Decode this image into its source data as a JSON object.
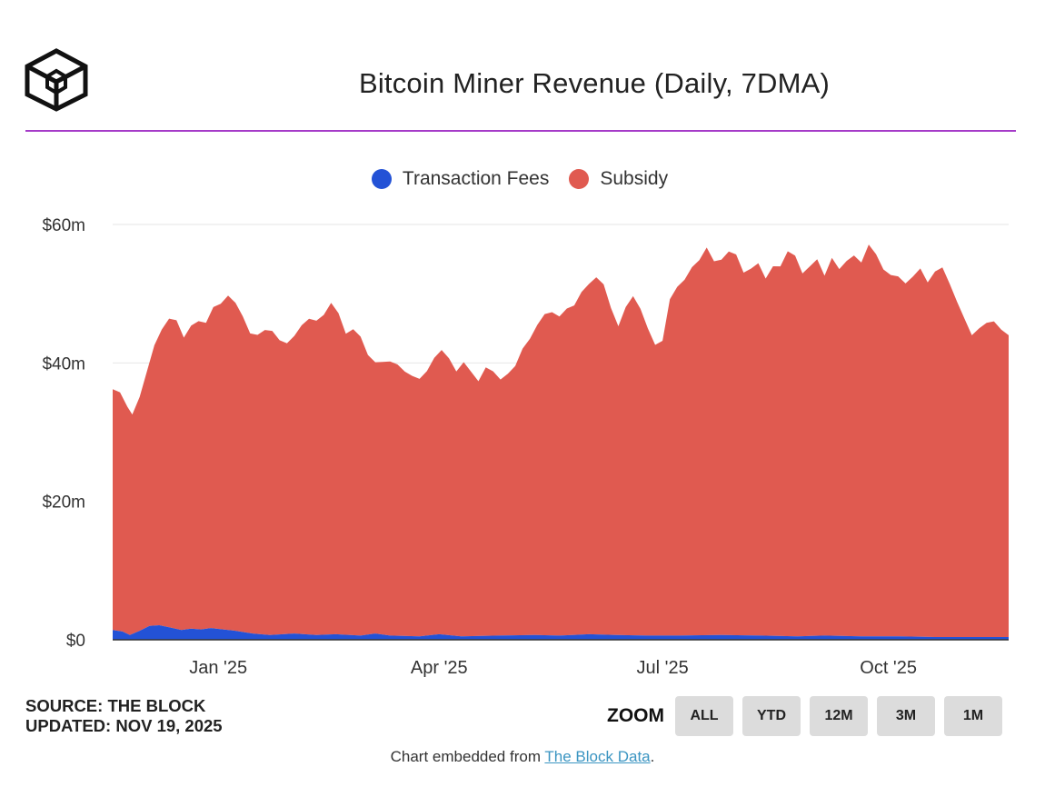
{
  "header": {
    "logo_icon": "the-block-cube-logo-icon",
    "title": "Bitcoin Miner Revenue (Daily, 7DMA)"
  },
  "legend": [
    {
      "name": "Transaction Fees",
      "color": "#2352d6"
    },
    {
      "name": "Subsidy",
      "color": "#e05a50"
    }
  ],
  "chart_data": {
    "type": "area",
    "stacked": true,
    "title": "Bitcoin Miner Revenue (Daily, 7DMA)",
    "xlabel": "",
    "ylabel": "",
    "x_range": [
      "2024-11-19",
      "2025-11-19"
    ],
    "ylim": [
      0,
      60
    ],
    "y_unit": "$m",
    "grid": true,
    "legend_position": "top-center",
    "x_ticks": [
      {
        "date": "2025-01-01",
        "label": "Jan '25"
      },
      {
        "date": "2025-04-01",
        "label": "Apr '25"
      },
      {
        "date": "2025-07-01",
        "label": "Jul '25"
      },
      {
        "date": "2025-10-01",
        "label": "Oct '25"
      }
    ],
    "y_ticks": [
      {
        "value": 0,
        "label": "$0"
      },
      {
        "value": 20,
        "label": "$20m"
      },
      {
        "value": 40,
        "label": "$40m"
      },
      {
        "value": 60,
        "label": "$60m"
      }
    ],
    "series": [
      {
        "name": "Transaction Fees",
        "color": "#2352d6",
        "points": [
          [
            "2024-11-19",
            1.4
          ],
          [
            "2024-11-23",
            1.2
          ],
          [
            "2024-11-26",
            0.7
          ],
          [
            "2024-11-30",
            1.3
          ],
          [
            "2024-12-04",
            2.0
          ],
          [
            "2024-12-08",
            2.1
          ],
          [
            "2024-12-12",
            1.8
          ],
          [
            "2024-12-17",
            1.4
          ],
          [
            "2024-12-21",
            1.6
          ],
          [
            "2024-12-25",
            1.5
          ],
          [
            "2024-12-29",
            1.7
          ],
          [
            "2025-01-03",
            1.5
          ],
          [
            "2025-01-08",
            1.3
          ],
          [
            "2025-01-15",
            0.9
          ],
          [
            "2025-01-22",
            0.7
          ],
          [
            "2025-02-01",
            0.9
          ],
          [
            "2025-02-10",
            0.7
          ],
          [
            "2025-02-18",
            0.8
          ],
          [
            "2025-02-28",
            0.6
          ],
          [
            "2025-03-06",
            0.9
          ],
          [
            "2025-03-12",
            0.6
          ],
          [
            "2025-03-24",
            0.5
          ],
          [
            "2025-04-01",
            0.8
          ],
          [
            "2025-04-10",
            0.5
          ],
          [
            "2025-04-25",
            0.6
          ],
          [
            "2025-05-10",
            0.7
          ],
          [
            "2025-05-20",
            0.6
          ],
          [
            "2025-06-01",
            0.8
          ],
          [
            "2025-06-12",
            0.7
          ],
          [
            "2025-06-25",
            0.6
          ],
          [
            "2025-07-08",
            0.6
          ],
          [
            "2025-07-25",
            0.7
          ],
          [
            "2025-08-10",
            0.6
          ],
          [
            "2025-08-25",
            0.5
          ],
          [
            "2025-09-05",
            0.6
          ],
          [
            "2025-09-20",
            0.5
          ],
          [
            "2025-10-05",
            0.5
          ],
          [
            "2025-10-20",
            0.4
          ],
          [
            "2025-11-05",
            0.4
          ],
          [
            "2025-11-19",
            0.4
          ]
        ]
      },
      {
        "name": "Subsidy",
        "color": "#e05a50",
        "points": [
          [
            "2024-11-19",
            34.8
          ],
          [
            "2024-11-22",
            34.5
          ],
          [
            "2024-11-25",
            32.8
          ],
          [
            "2024-11-27",
            31.7
          ],
          [
            "2024-11-30",
            33.8
          ],
          [
            "2024-12-03",
            37.0
          ],
          [
            "2024-12-06",
            40.5
          ],
          [
            "2024-12-09",
            42.8
          ],
          [
            "2024-12-12",
            44.6
          ],
          [
            "2024-12-15",
            44.6
          ],
          [
            "2024-12-18",
            42.2
          ],
          [
            "2024-12-21",
            43.8
          ],
          [
            "2024-12-24",
            44.5
          ],
          [
            "2024-12-27",
            44.2
          ],
          [
            "2024-12-30",
            46.4
          ],
          [
            "2025-01-02",
            47.0
          ],
          [
            "2025-01-05",
            48.3
          ],
          [
            "2025-01-08",
            47.4
          ],
          [
            "2025-01-11",
            45.6
          ],
          [
            "2025-01-14",
            43.3
          ],
          [
            "2025-01-17",
            43.2
          ],
          [
            "2025-01-20",
            44.0
          ],
          [
            "2025-01-23",
            43.9
          ],
          [
            "2025-01-26",
            42.5
          ],
          [
            "2025-01-29",
            42.0
          ],
          [
            "2025-02-01",
            43.0
          ],
          [
            "2025-02-04",
            44.6
          ],
          [
            "2025-02-07",
            45.6
          ],
          [
            "2025-02-10",
            45.4
          ],
          [
            "2025-02-13",
            46.2
          ],
          [
            "2025-02-16",
            47.9
          ],
          [
            "2025-02-19",
            46.4
          ],
          [
            "2025-02-22",
            43.5
          ],
          [
            "2025-02-25",
            44.2
          ],
          [
            "2025-02-28",
            43.2
          ],
          [
            "2025-03-03",
            40.4
          ],
          [
            "2025-03-06",
            39.2
          ],
          [
            "2025-03-09",
            39.4
          ],
          [
            "2025-03-12",
            39.6
          ],
          [
            "2025-03-15",
            39.2
          ],
          [
            "2025-03-18",
            38.2
          ],
          [
            "2025-03-21",
            37.6
          ],
          [
            "2025-03-24",
            37.2
          ],
          [
            "2025-03-27",
            38.2
          ],
          [
            "2025-03-30",
            40.0
          ],
          [
            "2025-04-02",
            41.1
          ],
          [
            "2025-04-05",
            40.0
          ],
          [
            "2025-04-08",
            38.2
          ],
          [
            "2025-04-11",
            39.6
          ],
          [
            "2025-04-14",
            38.2
          ],
          [
            "2025-04-17",
            36.8
          ],
          [
            "2025-04-20",
            38.8
          ],
          [
            "2025-04-23",
            38.2
          ],
          [
            "2025-04-26",
            37.0
          ],
          [
            "2025-04-29",
            37.8
          ],
          [
            "2025-05-02",
            38.9
          ],
          [
            "2025-05-05",
            41.4
          ],
          [
            "2025-05-08",
            42.8
          ],
          [
            "2025-05-11",
            44.8
          ],
          [
            "2025-05-14",
            46.4
          ],
          [
            "2025-05-17",
            46.7
          ],
          [
            "2025-05-20",
            46.1
          ],
          [
            "2025-05-23",
            47.2
          ],
          [
            "2025-05-26",
            47.6
          ],
          [
            "2025-05-29",
            49.5
          ],
          [
            "2025-06-01",
            50.6
          ],
          [
            "2025-06-04",
            51.6
          ],
          [
            "2025-06-07",
            50.6
          ],
          [
            "2025-06-10",
            47.2
          ],
          [
            "2025-06-13",
            44.6
          ],
          [
            "2025-06-16",
            47.4
          ],
          [
            "2025-06-19",
            49.0
          ],
          [
            "2025-06-22",
            47.2
          ],
          [
            "2025-06-25",
            44.4
          ],
          [
            "2025-06-28",
            42.0
          ],
          [
            "2025-07-01",
            42.6
          ],
          [
            "2025-07-04",
            48.6
          ],
          [
            "2025-07-07",
            50.4
          ],
          [
            "2025-07-10",
            51.4
          ],
          [
            "2025-07-13",
            53.2
          ],
          [
            "2025-07-16",
            54.2
          ],
          [
            "2025-07-19",
            56.0
          ],
          [
            "2025-07-22",
            54.0
          ],
          [
            "2025-07-25",
            54.2
          ],
          [
            "2025-07-28",
            55.4
          ],
          [
            "2025-07-31",
            55.0
          ],
          [
            "2025-08-03",
            52.4
          ],
          [
            "2025-08-06",
            53.0
          ],
          [
            "2025-08-09",
            53.8
          ],
          [
            "2025-08-12",
            51.6
          ],
          [
            "2025-08-15",
            53.4
          ],
          [
            "2025-08-18",
            53.4
          ],
          [
            "2025-08-21",
            55.6
          ],
          [
            "2025-08-24",
            55.0
          ],
          [
            "2025-08-27",
            52.4
          ],
          [
            "2025-08-30",
            53.4
          ],
          [
            "2025-09-02",
            54.4
          ],
          [
            "2025-09-05",
            52.0
          ],
          [
            "2025-09-08",
            54.6
          ],
          [
            "2025-09-11",
            53.0
          ],
          [
            "2025-09-14",
            54.2
          ],
          [
            "2025-09-17",
            55.0
          ],
          [
            "2025-09-20",
            54.0
          ],
          [
            "2025-09-23",
            56.6
          ],
          [
            "2025-09-26",
            55.2
          ],
          [
            "2025-09-29",
            53.0
          ],
          [
            "2025-10-02",
            52.2
          ],
          [
            "2025-10-05",
            52.0
          ],
          [
            "2025-10-08",
            51.0
          ],
          [
            "2025-10-11",
            52.0
          ],
          [
            "2025-10-14",
            53.2
          ],
          [
            "2025-10-17",
            51.2
          ],
          [
            "2025-10-20",
            52.8
          ],
          [
            "2025-10-23",
            53.4
          ],
          [
            "2025-10-26",
            51.0
          ],
          [
            "2025-10-29",
            48.4
          ],
          [
            "2025-11-01",
            46.0
          ],
          [
            "2025-11-04",
            43.6
          ],
          [
            "2025-11-07",
            44.6
          ],
          [
            "2025-11-10",
            45.4
          ],
          [
            "2025-11-13",
            45.6
          ],
          [
            "2025-11-16",
            44.4
          ],
          [
            "2025-11-19",
            43.6
          ]
        ]
      }
    ]
  },
  "footer": {
    "source_line": "SOURCE: THE BLOCK",
    "updated_line": "UPDATED: NOV 19, 2025",
    "zoom_label": "ZOOM",
    "zoom_buttons": [
      "ALL",
      "YTD",
      "12M",
      "3M",
      "1M"
    ],
    "embed_prefix": "Chart embedded from ",
    "embed_link": "The Block Data",
    "embed_suffix": "."
  }
}
